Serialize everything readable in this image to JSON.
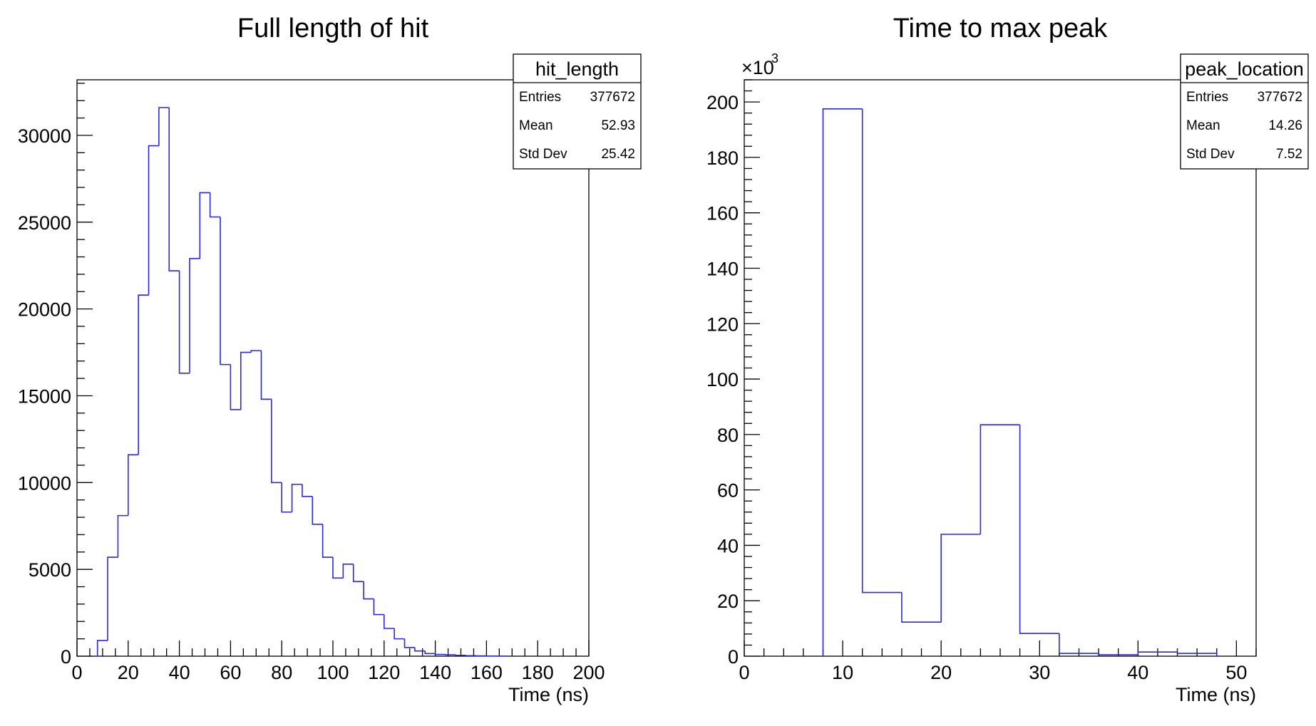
{
  "chart_data": [
    {
      "type": "histogram",
      "title": "Full length of hit",
      "xlabel": "Time (ns)",
      "ylabel": "",
      "xlim": [
        0,
        200
      ],
      "ylim": [
        0,
        33200
      ],
      "x_ticks": [
        0,
        20,
        40,
        60,
        80,
        100,
        120,
        140,
        160,
        180,
        200
      ],
      "y_ticks": [
        0,
        5000,
        10000,
        15000,
        20000,
        25000,
        30000
      ],
      "bin_width": 4,
      "bin_starts": [
        8,
        12,
        16,
        20,
        24,
        28,
        32,
        36,
        40,
        44,
        48,
        52,
        56,
        60,
        64,
        68,
        72,
        76,
        80,
        84,
        88,
        92,
        96,
        100,
        104,
        108,
        112,
        116,
        120,
        124,
        128,
        132,
        136,
        140,
        144,
        148,
        152,
        156,
        160,
        164
      ],
      "values": [
        900,
        5700,
        8100,
        11600,
        20800,
        29400,
        31600,
        22200,
        16300,
        22900,
        26700,
        25300,
        16800,
        14200,
        17500,
        17600,
        14800,
        10000,
        8300,
        9900,
        9200,
        7600,
        5700,
        4500,
        5300,
        4300,
        3300,
        2400,
        1600,
        1000,
        500,
        300,
        150,
        100,
        80,
        50,
        30,
        20,
        10,
        5
      ],
      "series_color": "#2a2ad6",
      "stats": {
        "name": "hit_length",
        "rows": [
          {
            "label": "Entries",
            "value": "377672"
          },
          {
            "label": "Mean",
            "value": "52.93"
          },
          {
            "label": "Std Dev",
            "value": "25.42"
          }
        ]
      }
    },
    {
      "type": "histogram",
      "title": "Time to max peak",
      "xlabel": "Time (ns)",
      "ylabel": "",
      "xlim": [
        0,
        52
      ],
      "ylim": [
        0,
        208
      ],
      "y_multiplier": "×10",
      "y_multiplier_exp": "3",
      "x_ticks": [
        0,
        10,
        20,
        30,
        40,
        50
      ],
      "y_ticks": [
        0,
        20,
        40,
        60,
        80,
        100,
        120,
        140,
        160,
        180,
        200
      ],
      "bin_width": 4,
      "bin_starts": [
        8,
        12,
        16,
        20,
        24,
        28,
        32,
        36,
        40,
        44
      ],
      "values": [
        197.5,
        23.0,
        12.3,
        44.0,
        83.5,
        8.2,
        1.0,
        0.5,
        1.5,
        1.0
      ],
      "series_color": "#2a2ad6",
      "stats": {
        "name": "peak_location",
        "rows": [
          {
            "label": "Entries",
            "value": "377672"
          },
          {
            "label": "Mean",
            "value": "14.26"
          },
          {
            "label": "Std Dev",
            "value": "7.52"
          }
        ]
      }
    }
  ]
}
